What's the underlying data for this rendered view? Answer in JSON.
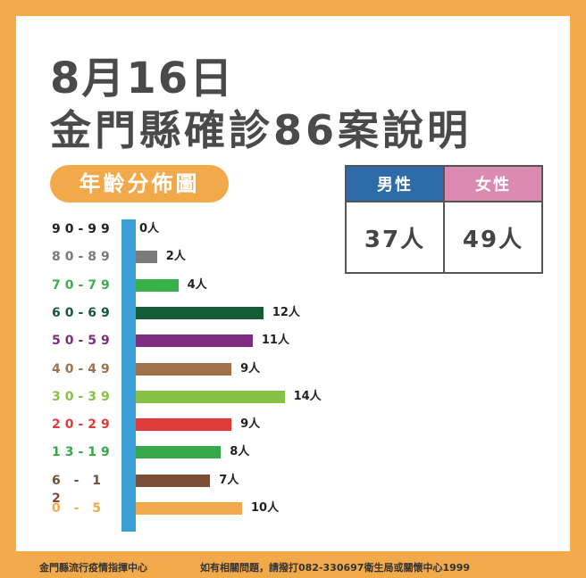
{
  "title": {
    "date": "8月16日",
    "subtitle": "金門縣確診86案說明"
  },
  "section_label": "年齡分佈圖",
  "gender": {
    "male_label": "男性",
    "female_label": "女性",
    "male_value": "37人",
    "female_value": "49人",
    "male_color": "#2d6aa8",
    "female_color": "#db8bb2"
  },
  "footer": {
    "left": "金門縣流行疫情指揮中心",
    "right": "如有相關問題，請撥打082-330697衛生局或關懷中心1999"
  },
  "chart_data": {
    "type": "bar",
    "orientation": "horizontal",
    "title": "年齡分佈圖",
    "categories": [
      "90-99",
      "80-89",
      "70-79",
      "60-69",
      "50-59",
      "40-49",
      "30-39",
      "20-29",
      "13-19",
      "6-12",
      "0-5"
    ],
    "values": [
      0,
      2,
      4,
      12,
      11,
      9,
      14,
      9,
      8,
      7,
      10
    ],
    "value_labels": [
      "0人",
      "2人",
      "4人",
      "12人",
      "11人",
      "9人",
      "14人",
      "9人",
      "8人",
      "7人",
      "10人"
    ],
    "label_display": [
      "90-99",
      "80-89",
      "70-79",
      "60-69",
      "50-59",
      "40-49",
      "30-39",
      "20-29",
      "13-19",
      "6 - 1 2",
      "0 - 5"
    ],
    "colors": [
      "#222222",
      "#7a7a7a",
      "#3ab04a",
      "#145c36",
      "#7e2c80",
      "#a0714a",
      "#86c146",
      "#e03a3a",
      "#36a84a",
      "#7a4f35",
      "#f2a94a"
    ],
    "xlabel": "",
    "ylabel": "",
    "unit": "人"
  }
}
